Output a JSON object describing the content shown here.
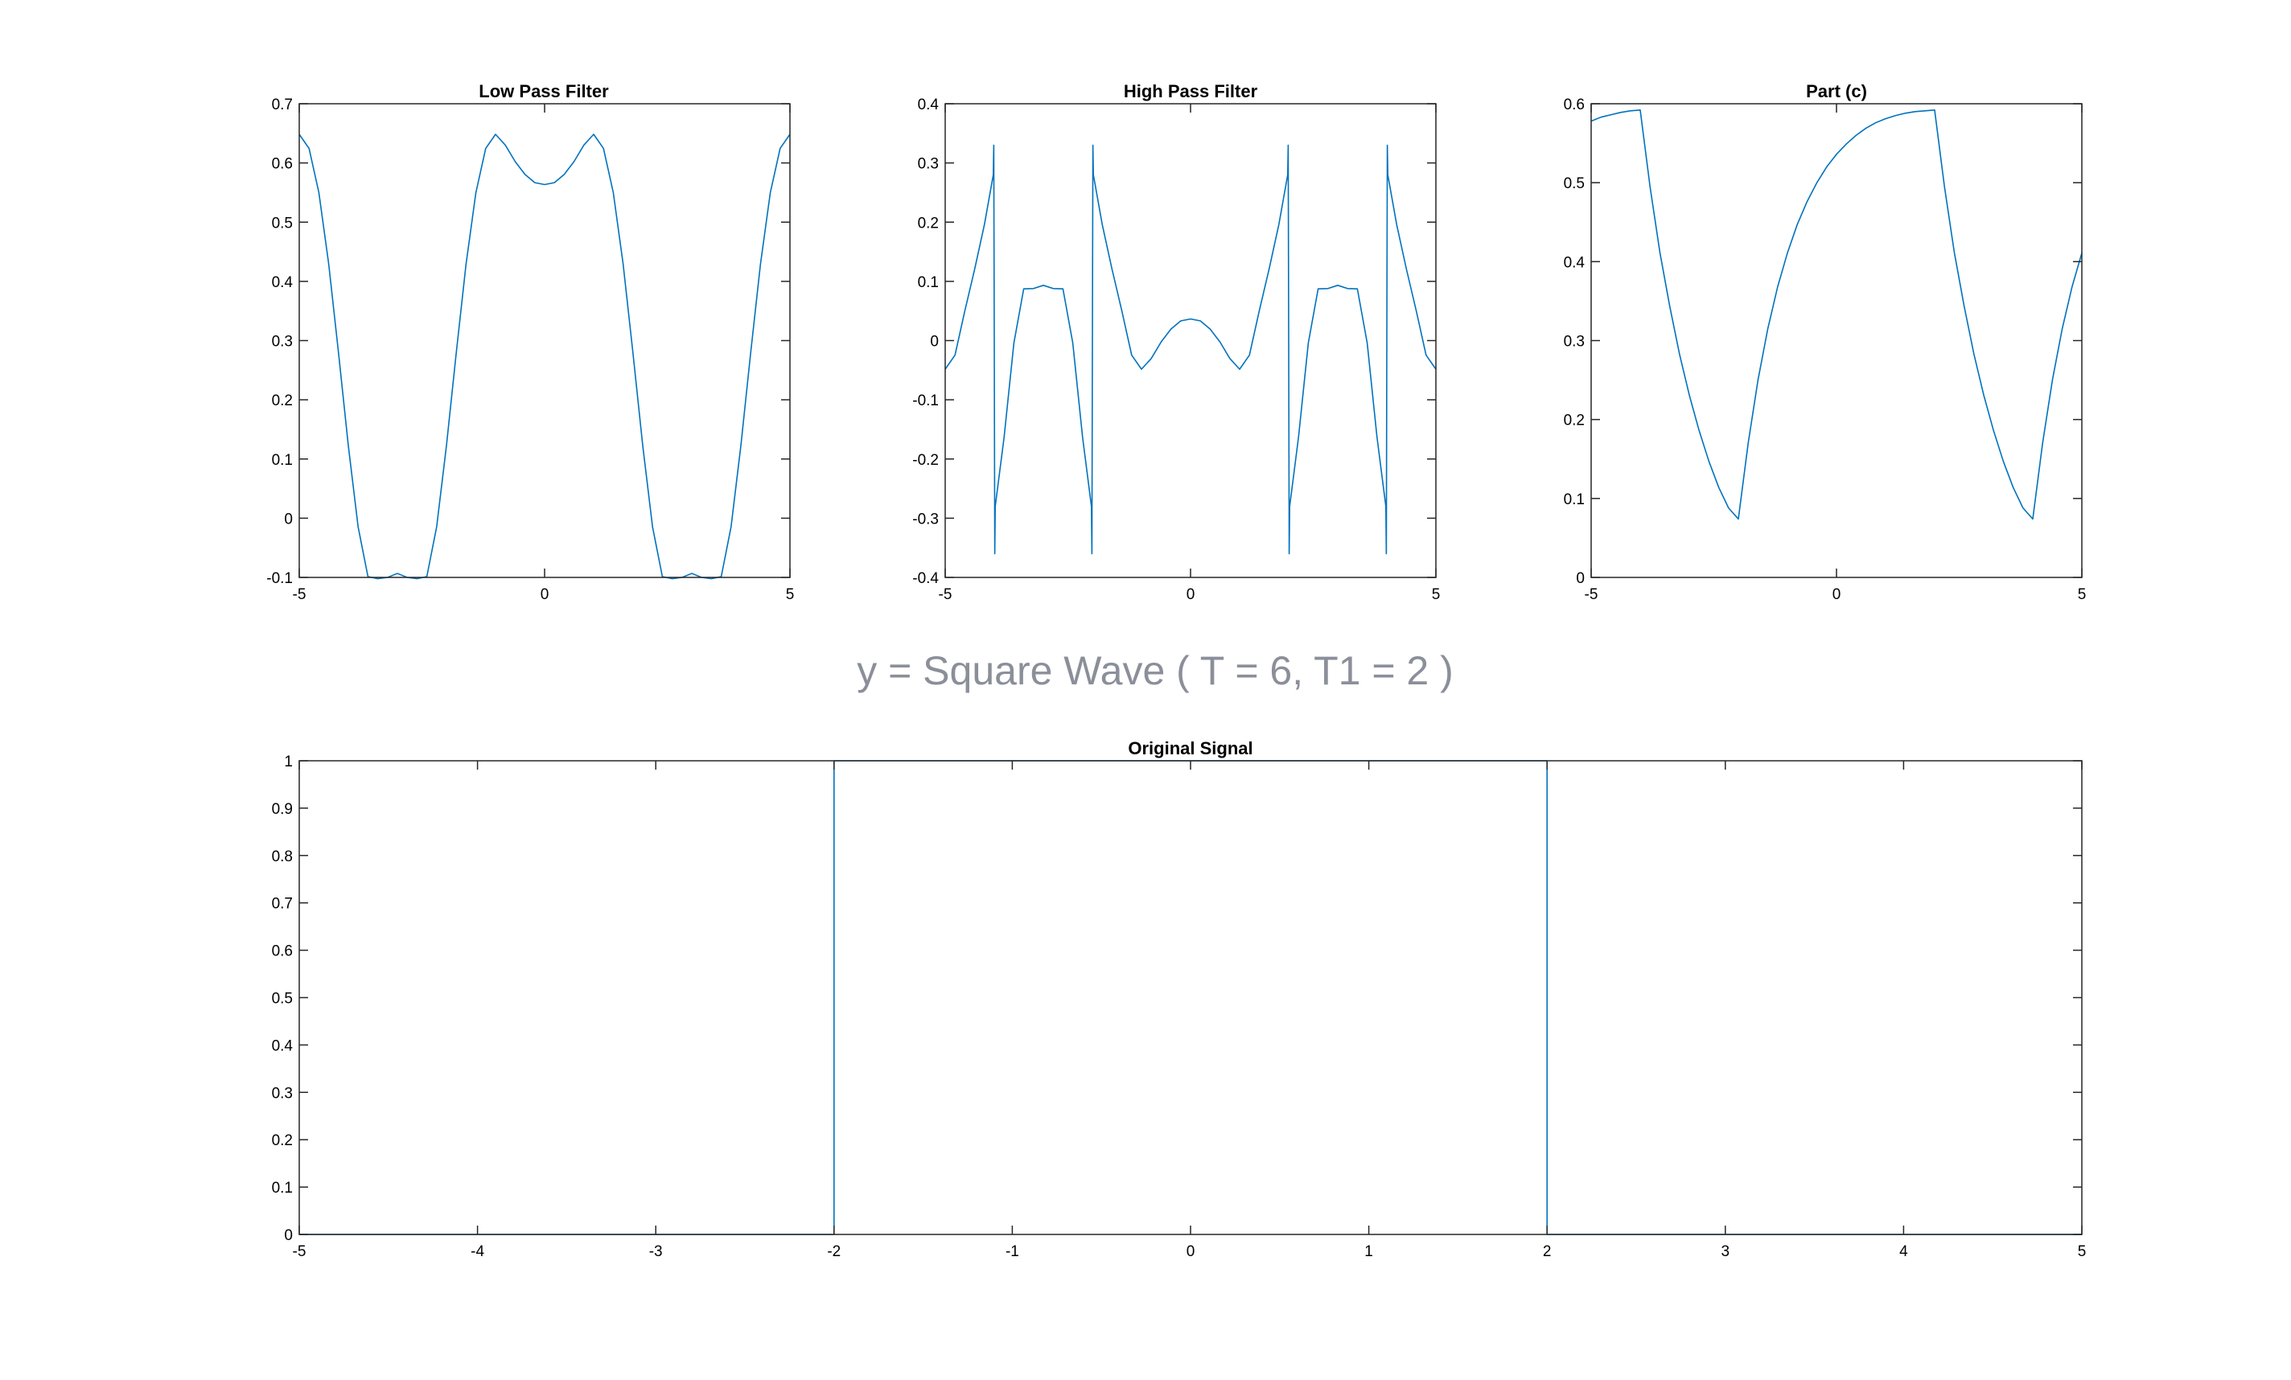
{
  "figure_title": "y = Square Wave ( T = 6, T1 = 2 )",
  "colors": {
    "series": "#0072bd",
    "axes": "#262626",
    "suptitle": "#8a8f99"
  },
  "chart_data": [
    {
      "id": "low-pass",
      "type": "line",
      "title": "Low Pass Filter",
      "xlabel": "",
      "ylabel": "",
      "xlim": [
        -5,
        5
      ],
      "ylim": [
        -0.1,
        0.7
      ],
      "xticks": [
        -5,
        0,
        5
      ],
      "xtick_labels": [
        "-5",
        "0",
        "5"
      ],
      "yticks": [
        -0.1,
        0,
        0.1,
        0.2,
        0.3,
        0.4,
        0.5,
        0.6,
        0.7
      ],
      "ytick_labels": [
        "-0.1",
        "0",
        "0.1",
        "0.2",
        "0.3",
        "0.4",
        "0.5",
        "0.6",
        "0.7"
      ],
      "grid": false,
      "series": [
        {
          "x": [
            -5,
            -4.8,
            -4.6,
            -4.4,
            -4.2,
            -4,
            -3.8,
            -3.6,
            -3.4,
            -3.2,
            -3,
            -2.8,
            -2.6,
            -2.4,
            -2.2,
            -2,
            -1.8,
            -1.6,
            -1.4,
            -1.2,
            -1,
            -0.8,
            -0.6,
            -0.4,
            -0.2,
            0,
            0.2,
            0.4,
            0.6,
            0.8,
            1,
            1.2,
            1.4,
            1.6,
            1.8,
            2,
            2.2,
            2.4,
            2.6,
            2.8,
            3,
            3.2,
            3.4,
            3.6,
            3.8,
            4,
            4.2,
            4.4,
            4.6,
            4.8,
            5
          ],
          "y": [
            0.6484,
            0.6245,
            0.5499,
            0.4296,
            0.2795,
            0.1226,
            -0.0147,
            -0.0986,
            -0.1022,
            -0.1,
            -0.0933,
            -0.1,
            -0.1022,
            -0.0986,
            -0.0147,
            0.1226,
            0.2795,
            0.4296,
            0.5499,
            0.6245,
            0.6484,
            0.6301,
            0.6024,
            0.5807,
            0.5667,
            0.5635,
            0.5667,
            0.5807,
            0.6024,
            0.6301,
            0.6484,
            0.6245,
            0.5499,
            0.4296,
            0.2795,
            0.1226,
            -0.0147,
            -0.0986,
            -0.1022,
            -0.1,
            -0.0933,
            -0.1,
            -0.1022,
            -0.0986,
            -0.0147,
            0.1226,
            0.2795,
            0.4296,
            0.5499,
            0.6245,
            0.6484
          ]
        }
      ]
    },
    {
      "id": "high-pass",
      "type": "line",
      "title": "High Pass Filter",
      "xlabel": "",
      "ylabel": "",
      "xlim": [
        -5,
        5
      ],
      "ylim": [
        -0.4,
        0.4
      ],
      "xticks": [
        -5,
        0,
        5
      ],
      "xtick_labels": [
        "-5",
        "0",
        "5"
      ],
      "yticks": [
        -0.4,
        -0.3,
        -0.2,
        -0.1,
        0,
        0.1,
        0.2,
        0.3,
        0.4
      ],
      "ytick_labels": [
        "-0.4",
        "-0.3",
        "-0.2",
        "-0.1",
        "0",
        "0.1",
        "0.2",
        "0.3",
        "0.4"
      ],
      "grid": false,
      "series": [
        {
          "x": [
            -5,
            -4.8,
            -4.6,
            -4.4,
            -4.2,
            -4.02,
            -4.01,
            -4.0,
            -3.99,
            -3.98,
            -3.8,
            -3.6,
            -3.4,
            -3.2,
            -3,
            -2.8,
            -2.6,
            -2.4,
            -2.2,
            -2.02,
            -2.01,
            -2.0,
            -1.99,
            -1.98,
            -1.8,
            -1.6,
            -1.4,
            -1.2,
            -1,
            -0.8,
            -0.6,
            -0.4,
            -0.2,
            0,
            0.2,
            0.4,
            0.6,
            0.8,
            1,
            1.2,
            1.4,
            1.6,
            1.8,
            1.98,
            1.99,
            2.0,
            2.01,
            2.02,
            2.2,
            2.4,
            2.6,
            2.8,
            3,
            3.2,
            3.4,
            3.6,
            3.8,
            3.98,
            3.99,
            4.0,
            4.01,
            4.02,
            4.2,
            4.4,
            4.6,
            4.8,
            5
          ],
          "y": [
            -0.0484,
            -0.0245,
            0.0501,
            0.1204,
            0.1962,
            0.28,
            0.33,
            0.0,
            -0.36,
            -0.28,
            -0.1634,
            -0.0041,
            0.0873,
            0.0879,
            0.0933,
            0.0879,
            0.0873,
            -0.0041,
            -0.1634,
            -0.28,
            -0.36,
            0.0,
            0.33,
            0.28,
            0.1962,
            0.1204,
            0.0501,
            -0.0245,
            -0.0484,
            -0.0301,
            -0.0024,
            0.0193,
            0.0333,
            0.0365,
            0.0333,
            0.0193,
            -0.0024,
            -0.0301,
            -0.0484,
            -0.0245,
            0.0501,
            0.1204,
            0.1962,
            0.28,
            0.33,
            0.0,
            -0.36,
            -0.28,
            -0.1634,
            -0.0041,
            0.0873,
            0.0879,
            0.0933,
            0.0879,
            0.0873,
            -0.0041,
            -0.1634,
            -0.28,
            -0.36,
            0.0,
            0.33,
            0.28,
            0.1962,
            0.1204,
            0.0501,
            -0.0245,
            -0.0484
          ]
        }
      ]
    },
    {
      "id": "part-c",
      "type": "line",
      "title": "Part (c)",
      "xlabel": "",
      "ylabel": "",
      "xlim": [
        -5,
        5
      ],
      "ylim": [
        0,
        0.6
      ],
      "xticks": [
        -5,
        0,
        5
      ],
      "xtick_labels": [
        "-5",
        "0",
        "5"
      ],
      "yticks": [
        0,
        0.1,
        0.2,
        0.3,
        0.4,
        0.5,
        0.6
      ],
      "ytick_labels": [
        "0",
        "0.1",
        "0.2",
        "0.3",
        "0.4",
        "0.5",
        "0.6"
      ],
      "grid": false,
      "series": [
        {
          "x": [
            -5,
            -4.8,
            -4.6,
            -4.4,
            -4.2,
            -4.0,
            -3.8,
            -3.6,
            -3.4,
            -3.2,
            -3.0,
            -2.8,
            -2.6,
            -2.4,
            -2.2,
            -2.0,
            -1.8,
            -1.6,
            -1.4,
            -1.2,
            -1.0,
            -0.8,
            -0.6,
            -0.4,
            -0.2,
            0.0,
            0.2,
            0.4,
            0.6,
            0.8,
            1.0,
            1.2,
            1.4,
            1.6,
            1.8,
            2.0,
            2.2,
            2.4,
            2.6,
            2.8,
            3.0,
            3.2,
            3.4,
            3.6,
            3.8,
            4.0,
            4.2,
            4.4,
            4.6,
            4.8,
            5.0
          ],
          "y": [
            0.578,
            0.583,
            0.586,
            0.589,
            0.591,
            0.592,
            0.495,
            0.412,
            0.344,
            0.283,
            0.231,
            0.186,
            0.147,
            0.114,
            0.088,
            0.074,
            0.17,
            0.25,
            0.315,
            0.368,
            0.411,
            0.447,
            0.476,
            0.5,
            0.52,
            0.536,
            0.549,
            0.56,
            0.569,
            0.576,
            0.581,
            0.585,
            0.588,
            0.59,
            0.591,
            0.592,
            0.495,
            0.412,
            0.344,
            0.283,
            0.231,
            0.186,
            0.147,
            0.114,
            0.088,
            0.074,
            0.17,
            0.25,
            0.315,
            0.368,
            0.411
          ]
        }
      ]
    },
    {
      "id": "original",
      "type": "line",
      "title": "Original Signal",
      "xlabel": "",
      "ylabel": "",
      "xlim": [
        -5,
        5
      ],
      "ylim": [
        0,
        1
      ],
      "xticks": [
        -5,
        -4,
        -3,
        -2,
        -1,
        0,
        1,
        2,
        3,
        4,
        5
      ],
      "xtick_labels": [
        "-5",
        "-4",
        "-3",
        "-2",
        "-1",
        "0",
        "1",
        "2",
        "3",
        "4",
        "5"
      ],
      "yticks": [
        0,
        0.1,
        0.2,
        0.3,
        0.4,
        0.5,
        0.6,
        0.7,
        0.8,
        0.9,
        1
      ],
      "ytick_labels": [
        "0",
        "0.1",
        "0.2",
        "0.3",
        "0.4",
        "0.5",
        "0.6",
        "0.7",
        "0.8",
        "0.9",
        "1"
      ],
      "grid": false,
      "series": [
        {
          "x": [
            -5,
            -2.0,
            -2.0,
            -2.0,
            2.0,
            2.0,
            2.0,
            5
          ],
          "y": [
            0,
            0,
            0.5,
            1,
            1,
            0.5,
            0,
            0
          ]
        }
      ]
    }
  ]
}
